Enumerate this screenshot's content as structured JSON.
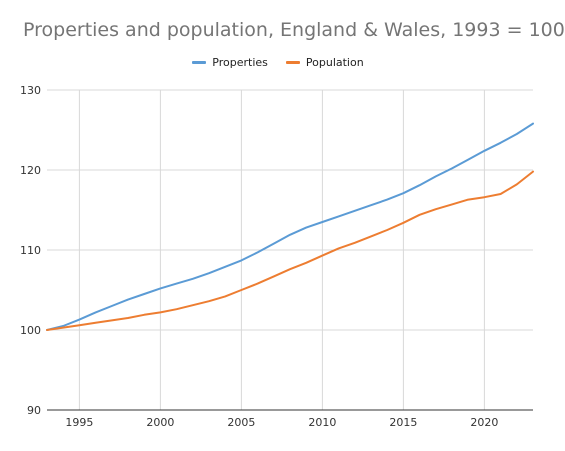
{
  "chart_data": {
    "type": "line",
    "title": "Properties and population, England & Wales, 1993 = 100",
    "xlabel": "",
    "ylabel": "",
    "x": [
      1993,
      1994,
      1995,
      1996,
      1997,
      1998,
      1999,
      2000,
      2001,
      2002,
      2003,
      2004,
      2005,
      2006,
      2007,
      2008,
      2009,
      2010,
      2011,
      2012,
      2013,
      2014,
      2015,
      2016,
      2017,
      2018,
      2019,
      2020,
      2021,
      2022,
      2023
    ],
    "series": [
      {
        "name": "Properties",
        "color": "#5b9bd5",
        "values": [
          100.0,
          100.5,
          101.3,
          102.2,
          103.0,
          103.8,
          104.5,
          105.2,
          105.8,
          106.4,
          107.1,
          107.9,
          108.7,
          109.7,
          110.8,
          111.9,
          112.8,
          113.5,
          114.2,
          114.9,
          115.6,
          116.3,
          117.1,
          118.1,
          119.2,
          120.2,
          121.3,
          122.4,
          123.4,
          124.5,
          125.8
        ]
      },
      {
        "name": "Population",
        "color": "#ed7d31",
        "values": [
          100.0,
          100.3,
          100.6,
          100.9,
          101.2,
          101.5,
          101.9,
          102.2,
          102.6,
          103.1,
          103.6,
          104.2,
          105.0,
          105.8,
          106.7,
          107.6,
          108.4,
          109.3,
          110.2,
          110.9,
          111.7,
          112.5,
          113.4,
          114.4,
          115.1,
          115.7,
          116.3,
          116.6,
          117.0,
          118.2,
          119.8
        ]
      }
    ],
    "xlim": [
      1993,
      2023
    ],
    "ylim": [
      90,
      130
    ],
    "yticks": [
      90,
      100,
      110,
      120,
      130
    ],
    "xticks": [
      1995,
      2000,
      2005,
      2010,
      2015,
      2020
    ],
    "grid": true,
    "legend_position": "top-center"
  }
}
